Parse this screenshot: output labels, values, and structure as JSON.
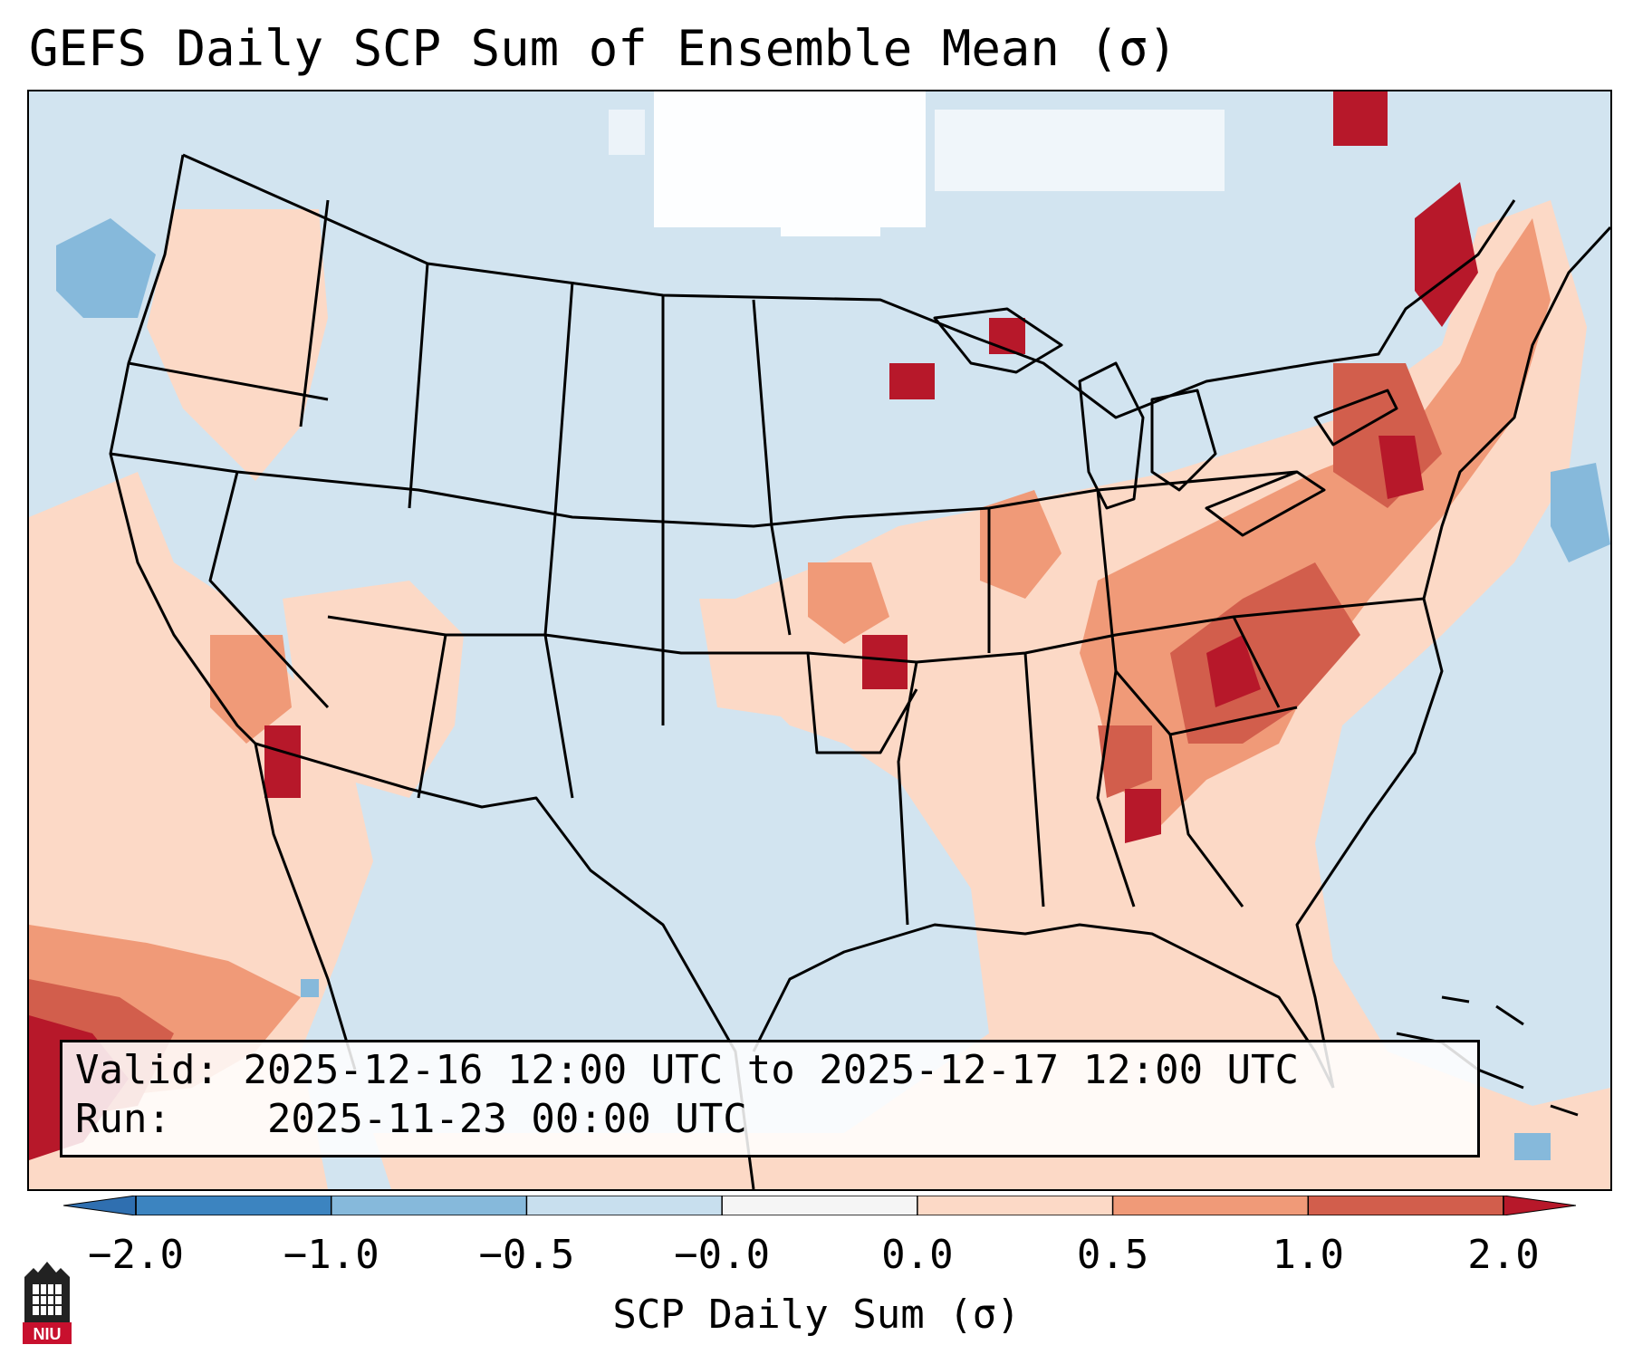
{
  "title": "GEFS Daily SCP Sum of Ensemble Mean (σ)",
  "info": {
    "valid_label": "Valid:",
    "valid_value": "2025-12-16 12:00 UTC to 2025-12-17 12:00 UTC",
    "run_label": "Run:",
    "run_value": "2025-11-23 00:00 UTC"
  },
  "colorbar": {
    "label": "SCP Daily Sum (σ)",
    "ticks": [
      "−2.0",
      "−1.0",
      "−0.5",
      "−0.0",
      "0.0",
      "0.5",
      "1.0",
      "2.0"
    ],
    "bin_colors": [
      "#3c84c0",
      "#86b9db",
      "#c8dfee",
      "#f5f5f5",
      "#fcd9c6",
      "#f09a78",
      "#d25e4c"
    ],
    "extend_low_color": "#2f6fb0",
    "extend_high_color": "#b7182a"
  },
  "map": {
    "background_color": "#d2e4f0",
    "region": "Contiguous United States"
  },
  "logo": {
    "text": "NIU"
  }
}
